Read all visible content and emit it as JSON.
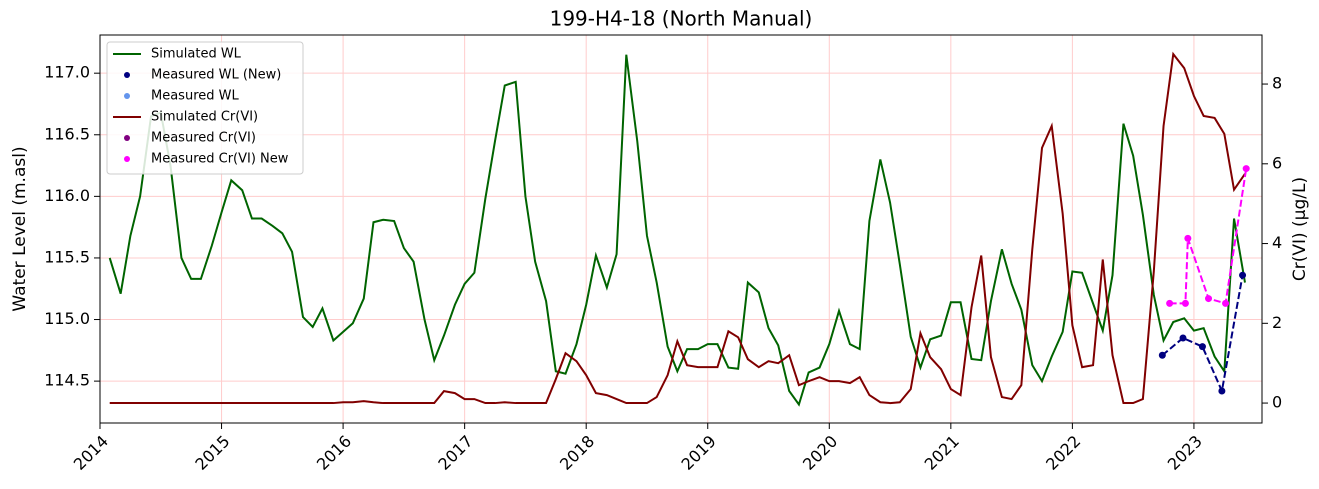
{
  "chart_data": {
    "type": "line",
    "title": "199-H4-18 (North Manual)",
    "ylabel": "Water Level (m.asl)",
    "y2label": "Cr(VI) (µg/L)",
    "xlim": [
      2014,
      2023.56
    ],
    "xticks": [
      2014,
      2015,
      2016,
      2017,
      2018,
      2019,
      2020,
      2021,
      2022,
      2023
    ],
    "ylim": [
      114.16,
      117.31
    ],
    "yticks": [
      114.5,
      {
        "value": 115,
        "label": "115.0"
      },
      115.5,
      {
        "value": 116,
        "label": "116.0"
      },
      116.5,
      {
        "value": 117,
        "label": "117.0"
      }
    ],
    "y2lim": [
      -0.5,
      9.23
    ],
    "y2ticks": [
      0,
      2,
      4,
      6,
      8
    ],
    "grid": true,
    "legend": "upper-left",
    "x": [
      2014.08,
      2014.17,
      2014.25,
      2014.33,
      2014.42,
      2014.5,
      2014.58,
      2014.67,
      2014.75,
      2014.83,
      2014.92,
      2015,
      2015.08,
      2015.17,
      2015.25,
      2015.33,
      2015.42,
      2015.5,
      2015.58,
      2015.67,
      2015.75,
      2015.83,
      2015.92,
      2016,
      2016.08,
      2016.17,
      2016.25,
      2016.33,
      2016.42,
      2016.5,
      2016.58,
      2016.67,
      2016.75,
      2016.83,
      2016.92,
      2017,
      2017.08,
      2017.17,
      2017.25,
      2017.33,
      2017.42,
      2017.5,
      2017.58,
      2017.67,
      2017.75,
      2017.83,
      2017.92,
      2018,
      2018.08,
      2018.17,
      2018.25,
      2018.33,
      2018.42,
      2018.5,
      2018.58,
      2018.67,
      2018.75,
      2018.83,
      2018.92,
      2019,
      2019.08,
      2019.17,
      2019.25,
      2019.33,
      2019.42,
      2019.5,
      2019.58,
      2019.67,
      2019.75,
      2019.83,
      2019.92,
      2020,
      2020.08,
      2020.17,
      2020.25,
      2020.33,
      2020.42,
      2020.5,
      2020.58,
      2020.67,
      2020.75,
      2020.83,
      2020.92,
      2021,
      2021.08,
      2021.17,
      2021.25,
      2021.33,
      2021.42,
      2021.5,
      2021.58,
      2021.67,
      2021.75,
      2021.83,
      2021.92,
      2022,
      2022.08,
      2022.17,
      2022.25,
      2022.33,
      2022.42,
      2022.5,
      2022.58,
      2022.67,
      2022.75,
      2022.83,
      2022.92,
      2023,
      2023.08,
      2023.17,
      2023.25,
      2023.33,
      2023.42
    ],
    "series": [
      {
        "name": "Simulated WL",
        "color": "#006400",
        "style": "line",
        "axis": "y",
        "values": [
          115.5,
          115.21,
          115.68,
          116.0,
          116.65,
          116.68,
          116.25,
          115.5,
          115.33,
          115.33,
          115.6,
          115.87,
          116.13,
          116.05,
          115.82,
          115.82,
          115.76,
          115.7,
          115.55,
          115.02,
          114.94,
          115.09,
          114.83,
          114.9,
          114.97,
          115.17,
          115.79,
          115.81,
          115.8,
          115.58,
          115.47,
          115.0,
          114.67,
          114.87,
          115.12,
          115.29,
          115.38,
          115.98,
          116.45,
          116.9,
          116.93,
          116.0,
          115.47,
          115.15,
          114.58,
          114.56,
          114.8,
          115.12,
          115.52,
          115.26,
          115.53,
          117.15,
          116.45,
          115.68,
          115.3,
          114.78,
          114.58,
          114.76,
          114.76,
          114.8,
          114.8,
          114.61,
          114.6,
          115.3,
          115.22,
          114.93,
          114.79,
          114.42,
          114.31,
          114.57,
          114.61,
          114.8,
          115.07,
          114.8,
          114.76,
          115.8,
          116.3,
          115.95,
          115.45,
          114.86,
          114.61,
          114.84,
          114.87,
          115.14,
          115.14,
          114.68,
          114.67,
          115.15,
          115.57,
          115.29,
          115.08,
          114.63,
          114.5,
          114.7,
          114.9,
          115.39,
          115.38,
          115.13,
          114.91,
          115.36,
          116.59,
          116.33,
          115.85,
          115.2,
          114.83,
          114.98,
          115.01,
          114.91,
          114.93,
          114.7,
          114.58,
          115.82,
          115.3
        ]
      },
      {
        "name": "Measured WL (New)",
        "color": "#000080",
        "style": "dashed-marker",
        "axis": "y",
        "x": [
          2022.74,
          2022.91,
          2023.07,
          2023.23,
          2023.4
        ],
        "values": [
          114.71,
          114.85,
          114.78,
          114.42,
          115.36
        ]
      },
      {
        "name": "Measured WL",
        "color": "#6495ed",
        "style": "marker",
        "axis": "y",
        "x": [],
        "values": []
      },
      {
        "name": "Simulated Cr(VI)",
        "color": "#800000",
        "style": "line",
        "axis": "y2",
        "values": [
          0,
          0,
          0,
          0,
          0,
          0,
          0,
          0,
          0,
          0,
          0,
          0,
          0,
          0,
          0,
          0,
          0,
          0,
          0,
          0,
          0,
          0,
          0,
          0.02,
          0.02,
          0.05,
          0.02,
          0,
          0,
          0,
          0,
          0,
          0,
          0.3,
          0.25,
          0.1,
          0.1,
          0,
          0,
          0.02,
          0,
          0,
          0,
          0,
          0.6,
          1.25,
          1.05,
          0.7,
          0.25,
          0.2,
          0.1,
          0,
          0,
          0,
          0.15,
          0.7,
          1.55,
          0.95,
          0.9,
          0.9,
          0.9,
          1.8,
          1.65,
          1.1,
          0.9,
          1.05,
          1.0,
          1.2,
          0.45,
          0.55,
          0.65,
          0.55,
          0.55,
          0.5,
          0.65,
          0.2,
          0.02,
          0,
          0.02,
          0.35,
          1.75,
          1.15,
          0.85,
          0.35,
          0.2,
          2.4,
          3.7,
          1.15,
          0.15,
          0.1,
          0.45,
          3.85,
          6.4,
          6.95,
          4.75,
          1.95,
          0.9,
          0.95,
          3.6,
          1.2,
          0,
          0,
          0.1,
          3.3,
          6.95,
          8.75,
          8.4,
          7.7,
          7.2,
          7.15,
          6.75,
          5.35,
          5.75
        ]
      },
      {
        "name": "Measured Cr(VI)",
        "color": "#800080",
        "style": "marker",
        "axis": "y2",
        "x": [],
        "values": []
      },
      {
        "name": "Measured Cr(VI) New",
        "color": "#ff00ff",
        "style": "dashed-marker",
        "axis": "y2",
        "x": [
          2022.8,
          2022.93,
          2022.95,
          2023.12,
          2023.26,
          2023.43
        ],
        "values": [
          2.5,
          2.5,
          4.13,
          2.62,
          2.5,
          5.88
        ]
      }
    ]
  }
}
